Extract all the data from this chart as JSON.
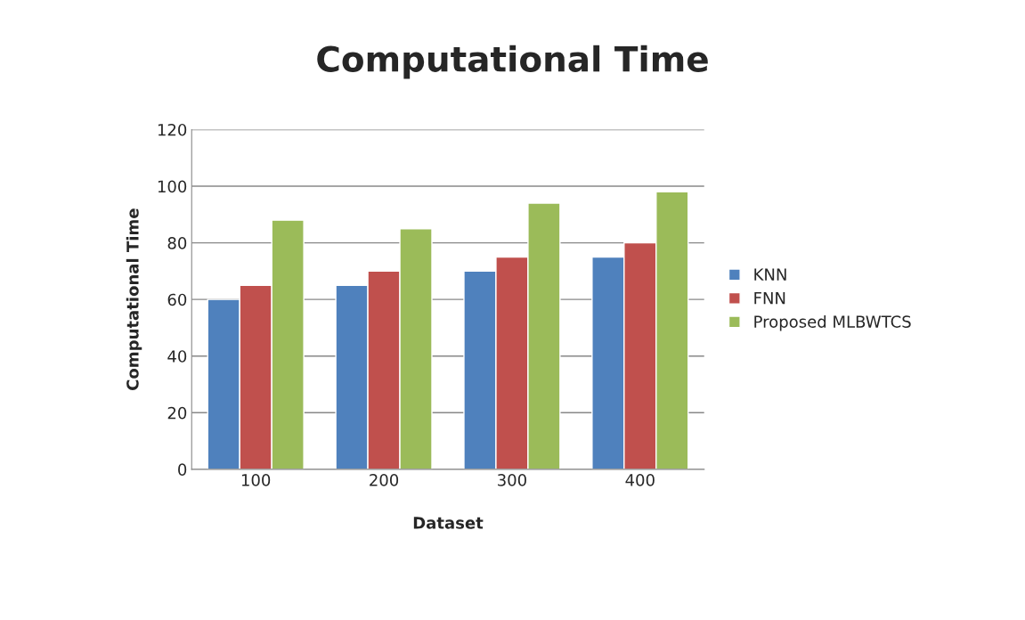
{
  "chart_data": {
    "type": "bar",
    "title": "Computational Time",
    "xlabel": "Dataset",
    "ylabel": "Computational Time",
    "categories": [
      "100",
      "200",
      "300",
      "400"
    ],
    "series": [
      {
        "name": "KNN",
        "color": "#4f81bd",
        "values": [
          60,
          65,
          70,
          75
        ]
      },
      {
        "name": "FNN",
        "color": "#c0504d",
        "values": [
          65,
          70,
          75,
          80
        ]
      },
      {
        "name": "Proposed MLBWTCS",
        "color": "#9bbb59",
        "values": [
          88,
          85,
          94,
          98
        ]
      }
    ],
    "ylim": [
      0,
      120
    ],
    "yticks": [
      0,
      20,
      40,
      60,
      80,
      100,
      120
    ],
    "grid": "y",
    "legend": "right"
  }
}
